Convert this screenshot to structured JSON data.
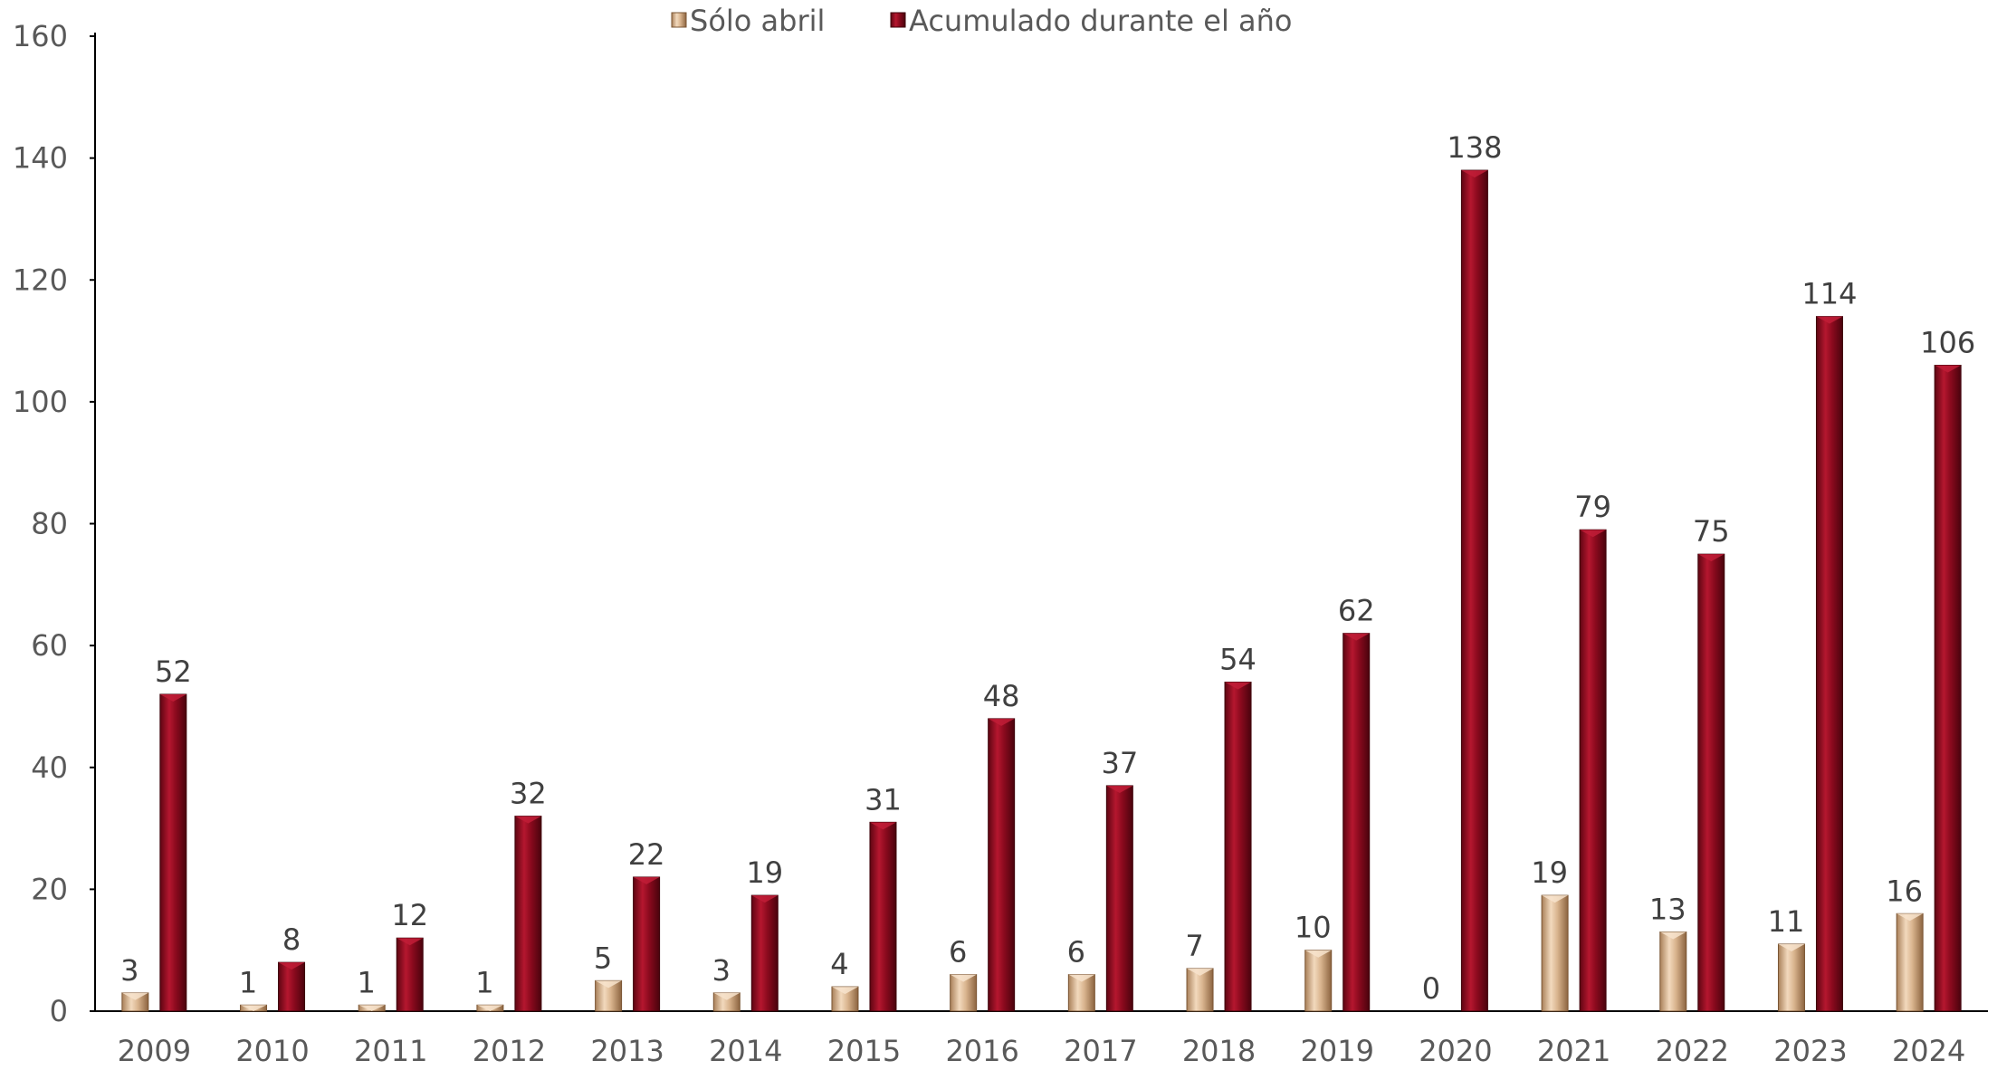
{
  "chart_data": {
    "type": "bar",
    "title": "",
    "xlabel": "",
    "ylabel": "",
    "categories": [
      "2009",
      "2010",
      "2011",
      "2012",
      "2013",
      "2014",
      "2015",
      "2016",
      "2017",
      "2018",
      "2019",
      "2020",
      "2021",
      "2022",
      "2023",
      "2024"
    ],
    "series": [
      {
        "name": "Sólo abril",
        "color": "#D9B48E",
        "values": [
          3,
          1,
          1,
          1,
          5,
          3,
          4,
          6,
          6,
          7,
          10,
          0,
          19,
          13,
          11,
          16
        ]
      },
      {
        "name": "Acumulado durante el año",
        "color": "#8B0A1E",
        "values": [
          52,
          8,
          12,
          32,
          22,
          19,
          31,
          48,
          37,
          54,
          62,
          138,
          79,
          75,
          114,
          106
        ]
      }
    ],
    "ylim": [
      0,
      160
    ],
    "yticks": [
      0,
      20,
      40,
      60,
      80,
      100,
      120,
      140,
      160
    ],
    "grid": false,
    "legend_position": "top-center",
    "data_labels": true
  }
}
